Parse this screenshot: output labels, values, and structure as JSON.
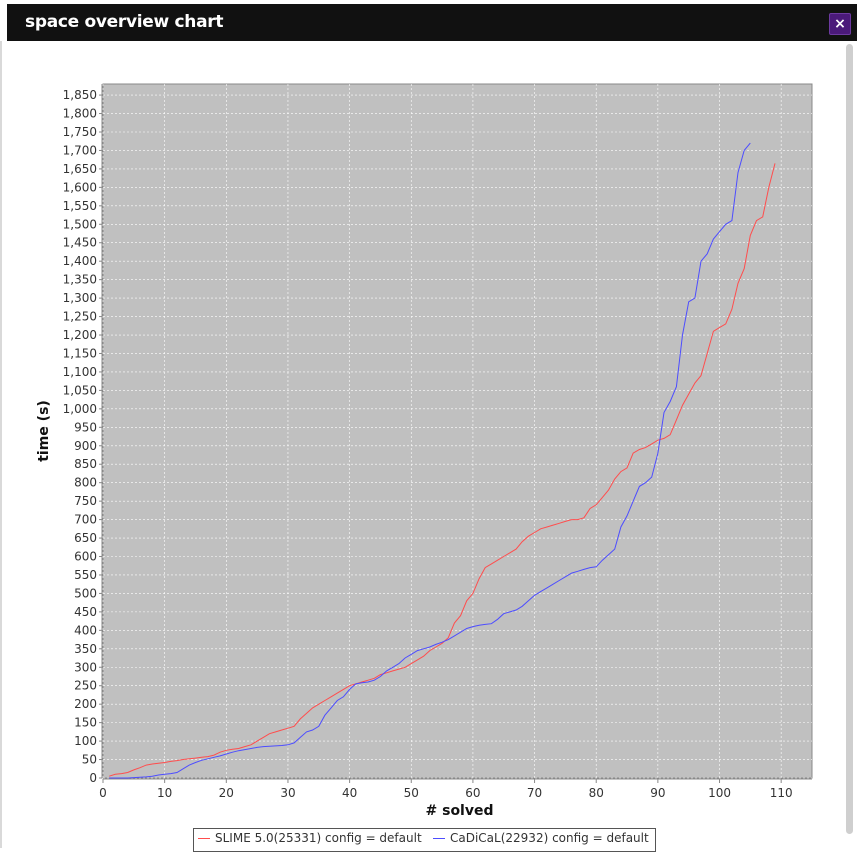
{
  "window": {
    "title": "space overview chart",
    "close_label": "×"
  },
  "colors": {
    "plot_background": "#c0c0c0",
    "grid": "#ffffff",
    "series_1": "#ff4d4d",
    "series_2": "#4d4dff",
    "title_bar": "#111111",
    "close_button": "#4b1a7a"
  },
  "chart_data": {
    "type": "line",
    "title": "",
    "xlabel": "# solved",
    "ylabel": "time (s)",
    "xlim": [
      0,
      115
    ],
    "ylim": [
      0,
      1880
    ],
    "xticks": [
      0,
      10,
      20,
      30,
      40,
      50,
      60,
      70,
      80,
      90,
      100,
      110
    ],
    "yticks": [
      0,
      50,
      100,
      150,
      200,
      250,
      300,
      350,
      400,
      450,
      500,
      550,
      600,
      650,
      700,
      750,
      800,
      850,
      900,
      950,
      1000,
      1050,
      1100,
      1150,
      1200,
      1250,
      1300,
      1350,
      1400,
      1450,
      1500,
      1550,
      1600,
      1650,
      1700,
      1750,
      1800,
      1850
    ],
    "ytick_labels": [
      "0",
      "50",
      "100",
      "150",
      "200",
      "250",
      "300",
      "350",
      "400",
      "450",
      "500",
      "550",
      "600",
      "650",
      "700",
      "750",
      "800",
      "850",
      "900",
      "950",
      "1,000",
      "1,050",
      "1,100",
      "1,150",
      "1,200",
      "1,250",
      "1,300",
      "1,350",
      "1,400",
      "1,450",
      "1,500",
      "1,550",
      "1,600",
      "1,650",
      "1,700",
      "1,750",
      "1,800",
      "1,850"
    ],
    "grid": true,
    "legend_position": "bottom",
    "series": [
      {
        "name": "SLIME 5.0(25331) config = default",
        "color": "#ff4d4d",
        "x": [
          1,
          2,
          3,
          4,
          5,
          6,
          7,
          8,
          9,
          10,
          11,
          12,
          13,
          14,
          15,
          16,
          17,
          18,
          19,
          20,
          21,
          22,
          23,
          24,
          25,
          26,
          27,
          28,
          29,
          30,
          31,
          32,
          33,
          34,
          35,
          36,
          37,
          38,
          39,
          40,
          41,
          42,
          43,
          44,
          45,
          46,
          47,
          48,
          49,
          50,
          51,
          52,
          53,
          54,
          55,
          56,
          57,
          58,
          59,
          60,
          61,
          62,
          63,
          64,
          65,
          66,
          67,
          68,
          69,
          70,
          71,
          72,
          73,
          74,
          75,
          76,
          77,
          78,
          79,
          80,
          81,
          82,
          83,
          84,
          85,
          86,
          87,
          88,
          89,
          90,
          91,
          92,
          93,
          94,
          95,
          96,
          97,
          98,
          99,
          100,
          101,
          102,
          103,
          104,
          105,
          106,
          107,
          108,
          109
        ],
        "y": [
          5,
          10,
          12,
          15,
          22,
          28,
          35,
          38,
          40,
          42,
          45,
          47,
          50,
          52,
          54,
          56,
          58,
          62,
          70,
          75,
          78,
          80,
          85,
          90,
          100,
          110,
          120,
          125,
          130,
          135,
          140,
          160,
          175,
          190,
          200,
          210,
          220,
          230,
          240,
          250,
          255,
          260,
          265,
          270,
          280,
          285,
          290,
          295,
          300,
          310,
          320,
          330,
          345,
          355,
          365,
          380,
          420,
          440,
          480,
          500,
          540,
          570,
          580,
          590,
          600,
          610,
          620,
          640,
          655,
          665,
          675,
          680,
          685,
          690,
          695,
          700,
          700,
          705,
          730,
          740,
          760,
          780,
          810,
          830,
          840,
          880,
          890,
          895,
          905,
          915,
          920,
          930,
          970,
          1010,
          1040,
          1070,
          1090,
          1150,
          1210,
          1220,
          1230,
          1270,
          1340,
          1380,
          1470,
          1510,
          1520,
          1600,
          1665
        ]
      },
      {
        "name": "CaDiCaL(22932) config = default",
        "color": "#4d4dff",
        "x": [
          1,
          2,
          3,
          4,
          5,
          6,
          7,
          8,
          9,
          10,
          11,
          12,
          13,
          14,
          15,
          16,
          17,
          18,
          19,
          20,
          21,
          22,
          23,
          24,
          25,
          26,
          27,
          28,
          29,
          30,
          31,
          32,
          33,
          34,
          35,
          36,
          37,
          38,
          39,
          40,
          41,
          42,
          43,
          44,
          45,
          46,
          47,
          48,
          49,
          50,
          51,
          52,
          53,
          54,
          55,
          56,
          57,
          58,
          59,
          60,
          61,
          62,
          63,
          64,
          65,
          66,
          67,
          68,
          69,
          70,
          71,
          72,
          73,
          74,
          75,
          76,
          77,
          78,
          79,
          80,
          81,
          82,
          83,
          84,
          85,
          86,
          87,
          88,
          89,
          90,
          91,
          92,
          93,
          94,
          95,
          96,
          97,
          98,
          99,
          100,
          101,
          102,
          103,
          104,
          105
        ],
        "y": [
          0,
          0,
          0,
          0,
          1,
          2,
          3,
          5,
          8,
          10,
          12,
          15,
          25,
          35,
          42,
          48,
          52,
          56,
          60,
          65,
          70,
          74,
          77,
          80,
          83,
          85,
          86,
          87,
          88,
          90,
          95,
          110,
          125,
          130,
          140,
          170,
          190,
          210,
          220,
          240,
          255,
          258,
          260,
          265,
          275,
          290,
          300,
          310,
          325,
          335,
          345,
          350,
          355,
          362,
          368,
          375,
          385,
          395,
          405,
          410,
          414,
          416,
          418,
          430,
          445,
          450,
          455,
          465,
          480,
          495,
          505,
          515,
          525,
          535,
          545,
          555,
          560,
          565,
          570,
          572,
          590,
          605,
          620,
          680,
          710,
          750,
          790,
          800,
          815,
          880,
          990,
          1020,
          1060,
          1200,
          1290,
          1300,
          1400,
          1420,
          1460,
          1480,
          1500,
          1510,
          1640,
          1700,
          1720
        ]
      }
    ]
  }
}
